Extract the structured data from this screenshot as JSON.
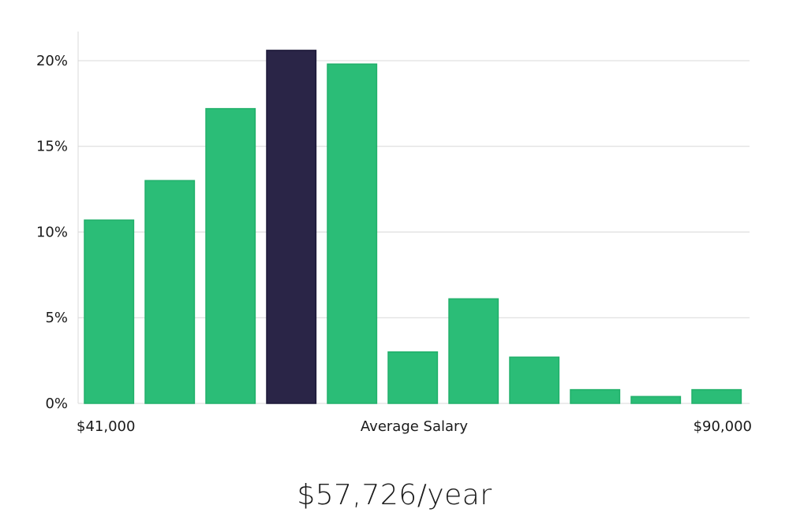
{
  "chart_data": {
    "type": "bar",
    "values": [
      10.7,
      13.0,
      17.2,
      20.6,
      19.8,
      3.0,
      6.1,
      2.7,
      0.8,
      0.4,
      0.8
    ],
    "highlight_index": 3,
    "ylim": [
      0,
      21.7
    ],
    "yticks": [
      0,
      5,
      10,
      15,
      20
    ],
    "ytick_labels": [
      "0%",
      "5%",
      "10%",
      "15%",
      "20%"
    ],
    "x_min_label": "$41,000",
    "x_center_label": "Average Salary",
    "x_max_label": "$90,000",
    "grid": true,
    "colors": {
      "bar": "#2bbd77",
      "highlight": "#2a2547",
      "grid": "#d9d9d9"
    }
  },
  "average_salary": "$57,726/year"
}
